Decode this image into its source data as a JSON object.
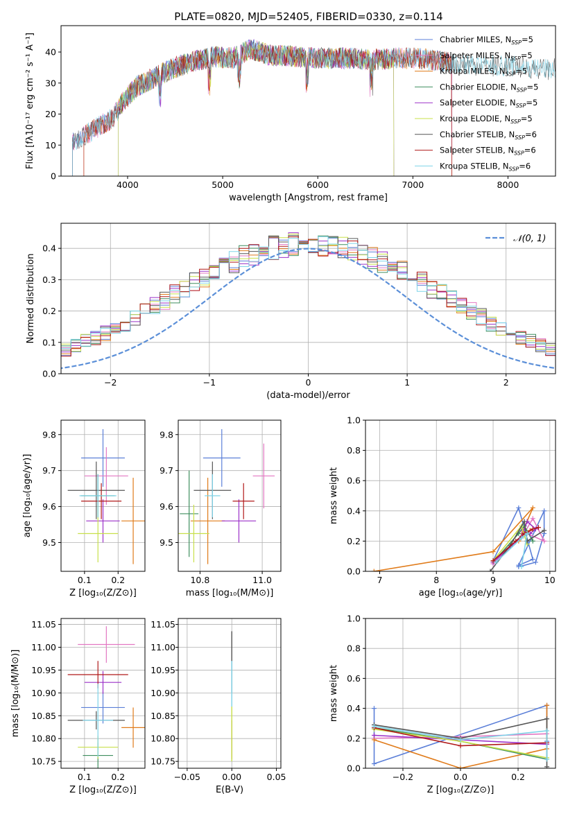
{
  "title": "PLATE=0820, MJD=52405, FIBERID=0330, z=0.114",
  "chart_data": [
    {
      "id": "spectrum",
      "type": "line",
      "xlabel": "wavelength [Angstrom, rest frame]",
      "ylabel": "Flux [fλ10⁻¹⁷ erg cm⁻² s⁻¹ A⁻¹]",
      "xlim": [
        3300,
        8500
      ],
      "ylim": [
        0,
        48.5
      ],
      "xticks": [
        4000,
        5000,
        6000,
        7000,
        8000
      ],
      "yticks": [
        0,
        10,
        20,
        30,
        40
      ],
      "grid": false,
      "legend_placement": "top-right",
      "continuum": {
        "x": [
          3420,
          3550,
          3700,
          3850,
          3950,
          4100,
          4300,
          4500,
          4700,
          4900,
          5100,
          5300,
          5500,
          5800,
          6000,
          6300,
          6600,
          6800,
          7000,
          7200,
          7400,
          7600,
          7800,
          8000,
          8200,
          8400
        ],
        "y": [
          11,
          13,
          16,
          19,
          24,
          29,
          32,
          35,
          37,
          38.5,
          38,
          41,
          39,
          38.5,
          38,
          38,
          37.5,
          38,
          38,
          37.5,
          36.5,
          36,
          35.5,
          35.5,
          35,
          34.5
        ]
      },
      "series": [
        {
          "name": "Chabrier MILES, N_SSP=5",
          "color": "#5b7fd8",
          "range": [
            3420,
            7410
          ]
        },
        {
          "name": "Salpeter MILES, N_SSP=5",
          "color": "#e377c2",
          "range": [
            3420,
            7410
          ]
        },
        {
          "name": "Kroupa MILES, N_SSP=5",
          "color": "#e07b1a",
          "range": [
            3540,
            7410
          ]
        },
        {
          "name": "Chabrier ELODIE, N_SSP=5",
          "color": "#3e8e5e",
          "range": [
            3900,
            6800
          ]
        },
        {
          "name": "Salpeter ELODIE, N_SSP=5",
          "color": "#9b30c8",
          "range": [
            3900,
            6800
          ]
        },
        {
          "name": "Kroupa ELODIE, N_SSP=5",
          "color": "#c8e04a",
          "range": [
            3900,
            6800
          ]
        },
        {
          "name": "Chabrier STELIB, N_SSP=6",
          "color": "#555555",
          "range": [
            3420,
            8500
          ]
        },
        {
          "name": "Salpeter STELIB, N_SSP=6",
          "color": "#b01818",
          "range": [
            3540,
            7410
          ]
        },
        {
          "name": "Kroupa STELIB, N_SSP=6",
          "color": "#7ed3e8",
          "range": [
            3420,
            8500
          ]
        }
      ]
    },
    {
      "id": "residuals",
      "type": "line",
      "xlabel": "(data-model)/error",
      "ylabel": "Normed distribution",
      "xlim": [
        -2.5,
        2.5
      ],
      "ylim": [
        0,
        0.48
      ],
      "xticks": [
        -2,
        -1,
        0,
        1,
        2
      ],
      "yticks": [
        0.0,
        0.1,
        0.2,
        0.3,
        0.4
      ],
      "grid": true,
      "legend_placement": "top-right",
      "legend": "𝒩(0, 1)",
      "bin_width": 0.1,
      "histogram_base": [
        0.03,
        0.034,
        0.038,
        0.044,
        0.05,
        0.058,
        0.068,
        0.078,
        0.09,
        0.102,
        0.116,
        0.13,
        0.146,
        0.162,
        0.18,
        0.198,
        0.216,
        0.235,
        0.254,
        0.273,
        0.292,
        0.31,
        0.328,
        0.344,
        0.358,
        0.372,
        0.384,
        0.394,
        0.402,
        0.408,
        0.412,
        0.414,
        0.414,
        0.412,
        0.408,
        0.402,
        0.394,
        0.384,
        0.372,
        0.358,
        0.344,
        0.328,
        0.31,
        0.292,
        0.273,
        0.254,
        0.235,
        0.216,
        0.198,
        0.18,
        0.162,
        0.146,
        0.13,
        0.116,
        0.102,
        0.09,
        0.078,
        0.068,
        0.058,
        0.05,
        0.044,
        0.038,
        0.034,
        0.03
      ]
    },
    {
      "id": "age-vs-Z",
      "type": "scatter",
      "xlabel": "Z [log₁₀(Z/Z⊙)]",
      "ylabel": "age  [log₁₀(age/yr)]",
      "xlim": [
        0.03,
        0.28
      ],
      "ylim": [
        9.42,
        9.84
      ],
      "xticks": [
        0.1,
        0.2
      ],
      "yticks": [
        9.5,
        9.6,
        9.7,
        9.8
      ],
      "grid": true,
      "points": [
        {
          "x": 0.155,
          "xe": 0.065,
          "y": 9.735,
          "ye": 0.08
        },
        {
          "x": 0.165,
          "xe": 0.065,
          "y": 9.685,
          "ye": 0.08
        },
        {
          "x": 0.245,
          "xe": 0.035,
          "y": 9.56,
          "ye": 0.12
        },
        {
          "x": 0.14,
          "xe": 0.05,
          "y": 9.63,
          "ye": 0.06
        },
        {
          "x": 0.155,
          "xe": 0.05,
          "y": 9.56,
          "ye": 0.06
        },
        {
          "x": 0.14,
          "xe": 0.06,
          "y": 9.525,
          "ye": 0.08
        },
        {
          "x": 0.135,
          "xe": 0.085,
          "y": 9.645,
          "ye": 0.08
        },
        {
          "x": 0.15,
          "xe": 0.06,
          "y": 9.615,
          "ye": 0.05
        },
        {
          "x": 0.14,
          "xe": 0.055,
          "y": 9.63,
          "ye": 0.06
        }
      ]
    },
    {
      "id": "age-vs-mass",
      "type": "scatter",
      "xlabel": "mass [log₁₀(M/M⊙)]",
      "ylabel": "",
      "xlim": [
        10.73,
        11.06
      ],
      "ylim": [
        9.42,
        9.84
      ],
      "xticks": [
        10.8,
        11.0
      ],
      "yticks": [
        9.5,
        9.6,
        9.7,
        9.8
      ],
      "grid": true,
      "points": [
        {
          "x": 10.87,
          "xe": 0.06,
          "y": 9.735,
          "ye": 0.08
        },
        {
          "x": 11.005,
          "xe": 0.035,
          "y": 9.685,
          "ye": 0.09
        },
        {
          "x": 10.825,
          "xe": 0.055,
          "y": 9.56,
          "ye": 0.12
        },
        {
          "x": 10.765,
          "xe": 0.03,
          "y": 9.58,
          "ye": 0.12
        },
        {
          "x": 10.925,
          "xe": 0.055,
          "y": 9.56,
          "ye": 0.06
        },
        {
          "x": 10.78,
          "xe": 0.05,
          "y": 9.525,
          "ye": 0.08
        },
        {
          "x": 10.84,
          "xe": 0.06,
          "y": 9.645,
          "ye": 0.08
        },
        {
          "x": 10.94,
          "xe": 0.035,
          "y": 9.615,
          "ye": 0.05
        },
        {
          "x": 10.84,
          "xe": 0.025,
          "y": 9.63,
          "ye": 0.06
        }
      ]
    },
    {
      "id": "weight-vs-age",
      "type": "line",
      "xlabel": "age  [log₁₀(age/yr)]",
      "ylabel": "mass weight",
      "xlim": [
        6.75,
        10.1
      ],
      "ylim": [
        0,
        1.0
      ],
      "xticks": [
        7,
        8,
        9,
        10
      ],
      "yticks": [
        0.0,
        0.2,
        0.4,
        0.6,
        0.8,
        1.0
      ],
      "grid": true,
      "series": [
        {
          "x": [
            9.0,
            9.45,
            9.7,
            9.45,
            9.9,
            9.9,
            9.75,
            9.45
          ],
          "y": [
            0.07,
            0.42,
            0.08,
            0.04,
            0.4,
            0.25,
            0.06,
            0.03
          ]
        },
        {
          "x": [
            9.0,
            9.5,
            9.7,
            9.9,
            9.6,
            9.5
          ],
          "y": [
            0.05,
            0.22,
            0.35,
            0.2,
            0.25,
            0.27
          ]
        },
        {
          "x": [
            6.9,
            9.0,
            9.7,
            9.45,
            9.65
          ],
          "y": [
            0.0,
            0.13,
            0.42,
            0.2,
            0.27
          ]
        },
        {
          "x": [
            9.0,
            9.45,
            9.55,
            9.7
          ],
          "y": [
            0.06,
            0.25,
            0.3,
            0.2
          ]
        },
        {
          "x": [
            9.0,
            9.5,
            9.6,
            9.75,
            9.65
          ],
          "y": [
            0.06,
            0.23,
            0.33,
            0.28,
            0.25
          ]
        },
        {
          "x": [
            9.0,
            9.5,
            9.6,
            9.55
          ],
          "y": [
            0.07,
            0.3,
            0.18,
            0.24
          ]
        },
        {
          "x": [
            8.95,
            9.3,
            9.55,
            9.6,
            9.9
          ],
          "y": [
            0.0,
            0.17,
            0.33,
            0.2,
            0.27
          ]
        },
        {
          "x": [
            9.0,
            9.4,
            9.55,
            9.7,
            9.8
          ],
          "y": [
            0.07,
            0.2,
            0.25,
            0.28,
            0.29
          ]
        },
        {
          "x": [
            9.05,
            9.5,
            9.6,
            9.5
          ],
          "y": [
            0.06,
            0.22,
            0.25,
            0.03
          ]
        }
      ]
    },
    {
      "id": "mass-vs-Z",
      "type": "scatter",
      "xlabel": "Z [log₁₀(Z/Z⊙)]",
      "ylabel": "mass [log₁₀(M/M⊙)]",
      "xlim": [
        0.03,
        0.28
      ],
      "ylim": [
        10.735,
        11.063
      ],
      "xticks": [
        0.1,
        0.2
      ],
      "yticks": [
        10.75,
        10.8,
        10.85,
        10.9,
        10.95,
        11.0,
        11.05
      ],
      "grid": true,
      "points": [
        {
          "x": 0.155,
          "xe": 0.065,
          "y": 10.868,
          "ye": 0.035
        },
        {
          "x": 0.165,
          "xe": 0.085,
          "y": 11.006,
          "ye": 0.04
        },
        {
          "x": 0.245,
          "xe": 0.035,
          "y": 10.824,
          "ye": 0.044
        },
        {
          "x": 0.14,
          "xe": 0.045,
          "y": 10.763,
          "ye": 0.028
        },
        {
          "x": 0.155,
          "xe": 0.055,
          "y": 10.923,
          "ye": 0.025
        },
        {
          "x": 0.14,
          "xe": 0.06,
          "y": 10.781,
          "ye": 0.025
        },
        {
          "x": 0.135,
          "xe": 0.085,
          "y": 10.84,
          "ye": 0.02
        },
        {
          "x": 0.14,
          "xe": 0.09,
          "y": 10.94,
          "ye": 0.03
        },
        {
          "x": 0.14,
          "xe": 0.045,
          "y": 10.84,
          "ye": 0.08
        }
      ]
    },
    {
      "id": "mass-vs-EBV",
      "type": "scatter",
      "xlabel": "E(B-V)",
      "ylabel": "",
      "xlim": [
        -0.06,
        0.055
      ],
      "ylim": [
        10.735,
        11.063
      ],
      "xticks": [
        -0.05,
        0.0,
        0.05
      ],
      "ytick_values": [
        10.75,
        10.8,
        10.85,
        10.9,
        10.95,
        11.0,
        11.05
      ],
      "grid": true,
      "segments": [
        {
          "y0": 10.76,
          "y1": 10.805
        },
        {
          "y0": 10.755,
          "y1": 10.84
        },
        {
          "y0": 10.9,
          "y1": 11.035
        },
        {
          "y0": 10.87,
          "y1": 10.97
        },
        {
          "y0": 10.75,
          "y1": 10.87
        }
      ]
    },
    {
      "id": "weight-vs-Z",
      "type": "line",
      "xlabel": "Z [log₁₀(Z/Z⊙)]",
      "ylabel": "mass weight",
      "xlim": [
        -0.33,
        0.33
      ],
      "ylim": [
        0,
        1.0
      ],
      "xticks": [
        -0.2,
        0.0,
        0.2
      ],
      "yticks": [
        0.0,
        0.2,
        0.4,
        0.6,
        0.8,
        1.0
      ],
      "grid": true,
      "series": [
        {
          "x": [
            -0.3,
            -0.3,
            0.3,
            0.3
          ],
          "y": [
            0.4,
            0.03,
            0.42,
            0.18
          ]
        },
        {
          "x": [
            -0.3,
            0.0,
            0.3
          ],
          "y": [
            0.2,
            0.21,
            0.23
          ]
        },
        {
          "x": [
            -0.3,
            0.0,
            0.3,
            0.3
          ],
          "y": [
            0.19,
            0.0,
            0.13,
            0.42
          ]
        },
        {
          "x": [
            -0.3,
            0.0,
            0.3
          ],
          "y": [
            0.27,
            0.18,
            0.06
          ]
        },
        {
          "x": [
            -0.3,
            0.0,
            0.3
          ],
          "y": [
            0.22,
            0.19,
            0.16
          ]
        },
        {
          "x": [
            -0.3,
            0.0,
            0.3
          ],
          "y": [
            0.26,
            0.18,
            0.07
          ]
        },
        {
          "x": [
            -0.3,
            0.0,
            0.3,
            0.3
          ],
          "y": [
            0.29,
            0.2,
            0.33,
            0.01
          ]
        },
        {
          "x": [
            -0.3,
            0.0,
            0.3
          ],
          "y": [
            0.27,
            0.15,
            0.17
          ]
        },
        {
          "x": [
            -0.3,
            0.0,
            0.3,
            0.3
          ],
          "y": [
            0.28,
            0.19,
            0.25,
            0.06
          ]
        }
      ]
    }
  ]
}
